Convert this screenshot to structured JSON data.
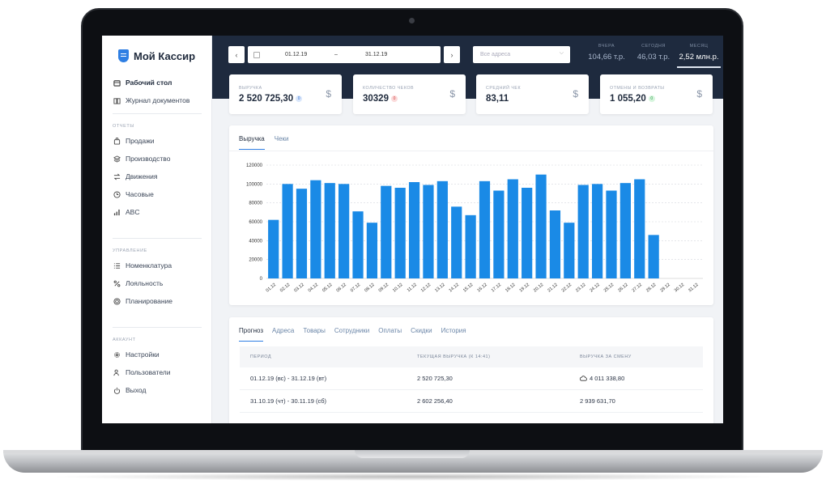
{
  "app": {
    "logo_text": "Мой Кассир",
    "brand_color": "#2f7fe3"
  },
  "sidebar": {
    "top_items": [
      {
        "label": "Рабочий стол",
        "icon": "calendar-icon"
      },
      {
        "label": "Журнал документов",
        "icon": "book-icon"
      }
    ],
    "reports_title": "ОТЧЕТЫ",
    "reports_items": [
      {
        "label": "Продажи",
        "icon": "bag-icon"
      },
      {
        "label": "Производство",
        "icon": "layers-icon"
      },
      {
        "label": "Движения",
        "icon": "arrows-icon"
      },
      {
        "label": "Часовые",
        "icon": "clock-icon"
      },
      {
        "label": "ABC",
        "icon": "bar-chart-icon"
      }
    ],
    "management_title": "УПРАВЛЕНИЕ",
    "management_items": [
      {
        "label": "Номенклатура",
        "icon": "list-icon"
      },
      {
        "label": "Лояльность",
        "icon": "percent-icon"
      },
      {
        "label": "Планирование",
        "icon": "target-icon"
      }
    ],
    "account_title": "АККАУНТ",
    "account_items": [
      {
        "label": "Настройки",
        "icon": "gear-icon"
      },
      {
        "label": "Пользователи",
        "icon": "users-icon"
      },
      {
        "label": "Выход",
        "icon": "power-icon"
      }
    ]
  },
  "topbar": {
    "date_from": "01.12.19",
    "date_sep": "–",
    "date_to": "31.12.19",
    "address_placeholder": "Все адреса",
    "periods": [
      {
        "label": "ВЧЕРА",
        "value": "104,66 т.р."
      },
      {
        "label": "СЕГОДНЯ",
        "value": "46,03 т.р."
      },
      {
        "label": "МЕСЯЦ",
        "value": "2,52 млн.р."
      }
    ]
  },
  "kpis": [
    {
      "label": "ВЫРУЧКА",
      "value": "2 520 725,30",
      "badge": "0",
      "badge_color": "#d9e6fb",
      "badge_text_color": "#2f6fd0"
    },
    {
      "label": "КОЛИЧЕСТВО ЧЕКОВ",
      "value": "30329",
      "badge": "0",
      "badge_color": "#fbdada",
      "badge_text_color": "#d04444"
    },
    {
      "label": "СРЕДНИЙ ЧЕК",
      "value": "83,11",
      "badge": "",
      "badge_color": "",
      "badge_text_color": ""
    },
    {
      "label": "ОТМЕНЫ И ВОЗВРАТЫ",
      "value": "1 055,20",
      "badge": "0",
      "badge_color": "#d6f5dd",
      "badge_text_color": "#2e9a4a"
    }
  ],
  "kpi_icon": "$",
  "chart_tabs": [
    "Выручка",
    "Чеки"
  ],
  "chart_data": {
    "type": "bar",
    "categories": [
      "01.12",
      "02.12",
      "03.12",
      "04.12",
      "05.12",
      "06.12",
      "07.12",
      "08.12",
      "09.12",
      "10.12",
      "11.12",
      "12.12",
      "13.12",
      "14.12",
      "15.12",
      "16.12",
      "17.12",
      "18.12",
      "19.12",
      "20.12",
      "21.12",
      "22.12",
      "23.12",
      "24.12",
      "25.12",
      "26.12",
      "27.12",
      "28.12",
      "29.12",
      "30.12",
      "31.12"
    ],
    "values": [
      62000,
      100000,
      95000,
      104000,
      101000,
      100000,
      71000,
      59000,
      98000,
      96000,
      102000,
      99000,
      103000,
      76000,
      67000,
      103000,
      93000,
      105000,
      96000,
      110000,
      72000,
      59000,
      99000,
      100000,
      93000,
      101000,
      105000,
      46000,
      0,
      0,
      0
    ],
    "yticks": [
      0,
      20000,
      40000,
      60000,
      80000,
      100000,
      120000
    ],
    "ylim": [
      0,
      120000
    ],
    "bar_color": "#1a8ae6",
    "grid": true
  },
  "bottom_tabs": [
    "Прогноз",
    "Адреса",
    "Товары",
    "Сотрудники",
    "Оплаты",
    "Скидки",
    "История"
  ],
  "table": {
    "headers": [
      "ПЕРИОД",
      "ТЕКУЩАЯ ВЫРУЧКА (К 14:41)",
      "ВЫРУЧКА ЗА СМЕНУ"
    ],
    "rows": [
      {
        "period": "01.12.19 (вс) - 31.12.19 (вт)",
        "current": "2 520 725,30",
        "shift": "4 011 338,80",
        "shift_icon": "cloud-icon"
      },
      {
        "period": "31.10.19 (чт) - 30.11.19 (сб)",
        "current": "2 602 256,40",
        "shift": "2 939 631,70",
        "shift_icon": ""
      }
    ]
  }
}
